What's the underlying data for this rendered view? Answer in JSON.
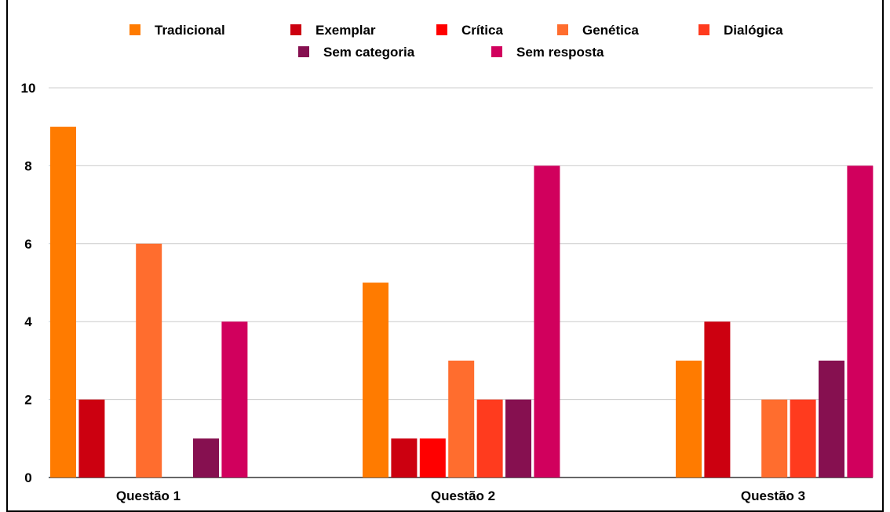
{
  "chart_data": {
    "type": "bar",
    "title": "",
    "categories": [
      "Questão 1",
      "Questão 2",
      "Questão 3"
    ],
    "series": [
      {
        "name": "Tradicional",
        "color": "#ff7b00",
        "values": [
          9,
          5,
          3
        ]
      },
      {
        "name": "Exemplar",
        "color": "#cc0010",
        "values": [
          2,
          1,
          4
        ]
      },
      {
        "name": "Crítica",
        "color": "#ff0000",
        "values": [
          0,
          1,
          0
        ]
      },
      {
        "name": "Genética",
        "color": "#ff6d2e",
        "values": [
          6,
          3,
          2
        ]
      },
      {
        "name": "Dialógica",
        "color": "#ff3b1e",
        "values": [
          0,
          2,
          2
        ]
      },
      {
        "name": "Sem categoria",
        "color": "#861050",
        "values": [
          1,
          2,
          3
        ]
      },
      {
        "name": "Sem resposta",
        "color": "#d1005d",
        "values": [
          4,
          8,
          8
        ]
      }
    ],
    "yticks": [
      0,
      2,
      4,
      6,
      8,
      10
    ],
    "ylim": [
      0,
      10
    ],
    "grid": true,
    "legend": "top-center"
  }
}
